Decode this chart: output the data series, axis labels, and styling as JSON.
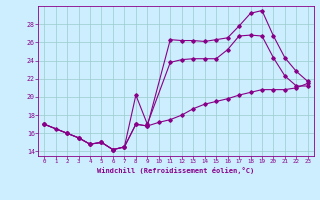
{
  "xlabel": "Windchill (Refroidissement éolien,°C)",
  "bg_color": "#cceeff",
  "line_color": "#880088",
  "grid_color": "#99cccc",
  "xlim": [
    -0.5,
    23.5
  ],
  "ylim": [
    13.5,
    30.0
  ],
  "yticks": [
    14,
    16,
    18,
    20,
    22,
    24,
    26,
    28
  ],
  "xticks": [
    0,
    1,
    2,
    3,
    4,
    5,
    6,
    7,
    8,
    9,
    10,
    11,
    12,
    13,
    14,
    15,
    16,
    17,
    18,
    19,
    20,
    21,
    22,
    23
  ],
  "line1_x": [
    0,
    1,
    2,
    3,
    4,
    5,
    6,
    7,
    8,
    9,
    11,
    12,
    13,
    14,
    15,
    16,
    17,
    18,
    19,
    20,
    21,
    22,
    23
  ],
  "line1_y": [
    17.0,
    16.5,
    16.0,
    15.5,
    14.8,
    15.0,
    14.2,
    14.5,
    17.0,
    16.8,
    26.3,
    26.2,
    26.2,
    26.1,
    26.3,
    26.5,
    27.8,
    29.2,
    29.5,
    26.7,
    24.3,
    22.8,
    21.7
  ],
  "line2_x": [
    0,
    2,
    3,
    4,
    5,
    6,
    7,
    8,
    9,
    11,
    12,
    13,
    14,
    15,
    16,
    17,
    18,
    19,
    20,
    21,
    22,
    23
  ],
  "line2_y": [
    17.0,
    16.0,
    15.5,
    14.8,
    15.0,
    14.2,
    14.5,
    20.2,
    17.0,
    23.8,
    24.1,
    24.2,
    24.2,
    24.2,
    25.2,
    26.7,
    26.8,
    26.7,
    24.3,
    22.3,
    21.2,
    21.2
  ],
  "line3_x": [
    0,
    2,
    3,
    4,
    5,
    6,
    7,
    8,
    9,
    10,
    11,
    12,
    13,
    14,
    15,
    16,
    17,
    18,
    19,
    20,
    21,
    22,
    23
  ],
  "line3_y": [
    17.0,
    16.0,
    15.5,
    14.8,
    15.0,
    14.2,
    14.5,
    17.0,
    16.8,
    17.2,
    17.5,
    18.0,
    18.7,
    19.2,
    19.5,
    19.8,
    20.2,
    20.5,
    20.8,
    20.8,
    20.8,
    21.0,
    21.5
  ]
}
